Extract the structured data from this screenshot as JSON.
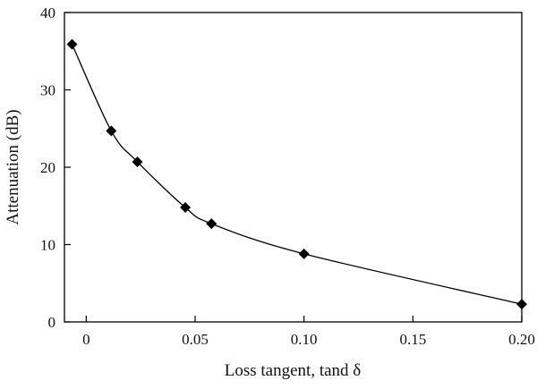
{
  "chart_data": {
    "type": "line",
    "title": "",
    "xlabel": "Loss tangent, tand δ",
    "ylabel": "Attenuation (dB)",
    "xlim": [
      -0.01,
      0.2
    ],
    "ylim": [
      0,
      40
    ],
    "x_ticks": [
      0,
      0.05,
      0.1,
      0.15,
      0.2
    ],
    "x_tick_labels": [
      "0",
      "0.05",
      "0.10",
      "0.15",
      "0.20"
    ],
    "y_ticks": [
      0,
      10,
      20,
      30,
      40
    ],
    "y_tick_labels": [
      "0",
      "10",
      "20",
      "30",
      "40"
    ],
    "grid": false,
    "legend": "none",
    "marker": "diamond",
    "series": [
      {
        "x": [
          -0.0065,
          0.0115,
          0.0235,
          0.0455,
          0.0575,
          0.1,
          0.2
        ],
        "y": [
          35.9,
          24.7,
          20.7,
          14.8,
          12.7,
          8.8,
          2.3
        ]
      }
    ]
  },
  "colors": {
    "line": "#000000",
    "marker": "#000000",
    "axis": "#000000"
  }
}
